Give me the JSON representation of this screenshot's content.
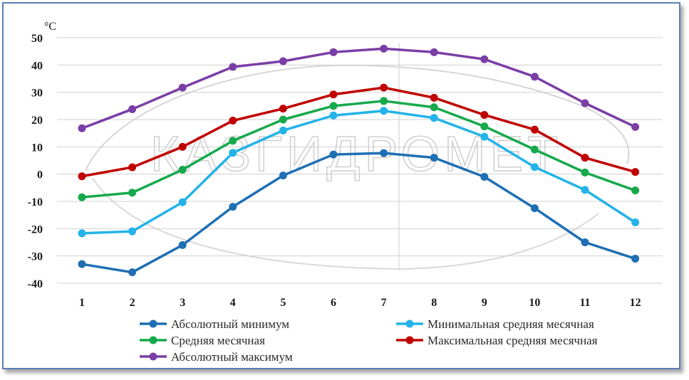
{
  "chart_data": {
    "type": "line",
    "ylabel": "°C",
    "ylim": [
      -40,
      50
    ],
    "yticks": [
      50,
      40,
      30,
      20,
      10,
      0,
      -10,
      -20,
      -30,
      -40
    ],
    "categories": [
      "1",
      "2",
      "3",
      "4",
      "5",
      "6",
      "7",
      "8",
      "9",
      "10",
      "11",
      "12"
    ],
    "grid": "horizontal",
    "legend_position": "bottom",
    "series": [
      {
        "name": "Абсолютный минимум",
        "color": "#1f6fb4",
        "values": [
          -33,
          -36,
          -26,
          -12,
          -0.5,
          7.2,
          7.7,
          6,
          -1,
          -12.5,
          -25,
          -31
        ]
      },
      {
        "name": "Минимальная средняя месячная",
        "color": "#23b3e8",
        "values": [
          -21.7,
          -21,
          -10.3,
          7.8,
          16,
          21.5,
          23.2,
          20.6,
          13.7,
          2.6,
          -5.8,
          -17.7
        ]
      },
      {
        "name": "Средняя месячная",
        "color": "#16a94c",
        "values": [
          -8.5,
          -6.8,
          1.6,
          12.2,
          20,
          25,
          26.8,
          24.5,
          17.5,
          9,
          0.6,
          -6
        ]
      },
      {
        "name": "Максимальная средняя месячная",
        "color": "#c00000",
        "values": [
          -0.8,
          2.5,
          10,
          19.6,
          24,
          29.2,
          31.7,
          28,
          21.7,
          16.3,
          6,
          0.8
        ]
      },
      {
        "name": "Абсолютный максимум",
        "color": "#7a3ea6",
        "values": [
          16.8,
          23.8,
          31.7,
          39.3,
          41.4,
          44.7,
          46,
          44.7,
          42.1,
          35.7,
          26,
          17.3
        ]
      }
    ]
  },
  "watermark": "КАЗГИДРОМЕТ"
}
